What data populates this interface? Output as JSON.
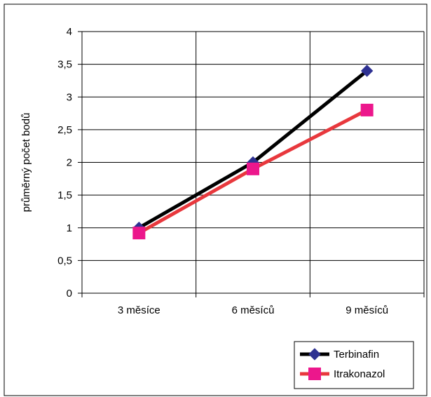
{
  "chart_data": {
    "type": "line",
    "categories": [
      "3 měsíce",
      "6 měsíců",
      "9 měsíců"
    ],
    "series": [
      {
        "name": "Terbinafin",
        "values": [
          1.0,
          2.0,
          3.4
        ],
        "color": "#000000",
        "marker": "diamond",
        "marker_color": "#2E3192"
      },
      {
        "name": "Itrakonazol",
        "values": [
          0.92,
          1.9,
          2.8
        ],
        "color": "#E8383D",
        "marker": "square",
        "marker_color": "#EC178C"
      }
    ],
    "ylabel": "průměrný počet bodů",
    "xlabel": "",
    "title": "",
    "ylim": [
      0,
      4
    ],
    "y_ticks": [
      0,
      0.5,
      1,
      1.5,
      2,
      2.5,
      3,
      3.5,
      4
    ],
    "y_tick_labels": [
      "0",
      "0,5",
      "1",
      "1,5",
      "2",
      "2,5",
      "3",
      "3,5",
      "4"
    ],
    "grid": true,
    "legend_position": "bottom-right"
  }
}
